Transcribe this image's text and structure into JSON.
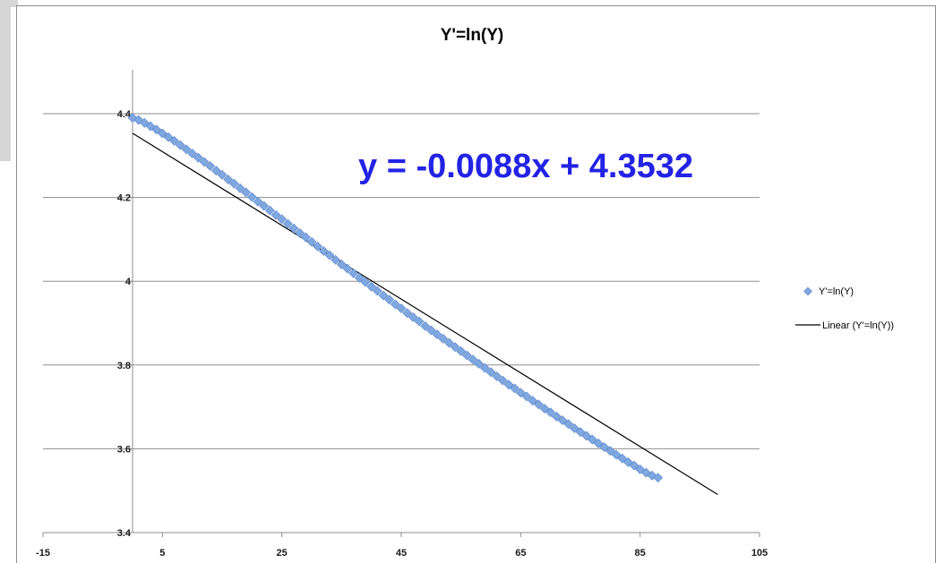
{
  "chart_data": {
    "type": "scatter",
    "title": "Y'=ln(Y)",
    "xlabel": "",
    "ylabel": "",
    "xlim": [
      -15,
      105
    ],
    "ylim": [
      3.4,
      4.4
    ],
    "x_ticks": [
      "-15",
      "5",
      "25",
      "45",
      "65",
      "85",
      "105"
    ],
    "y_ticks": [
      "4.4",
      "4.2",
      "4",
      "3.8",
      "3.6",
      "3.4"
    ],
    "grid": "horizontal",
    "legend_position": "right",
    "equation_label": "y = -0.0088x + 4.3532",
    "series": [
      {
        "name": "Y'=ln(Y)",
        "kind": "scatter",
        "color": "#7fa7e0",
        "marker": "diamond",
        "points": [
          [
            0,
            4.39
          ],
          [
            1,
            4.385
          ],
          [
            2,
            4.378
          ],
          [
            3,
            4.37
          ],
          [
            4,
            4.362
          ],
          [
            5,
            4.353
          ],
          [
            6,
            4.344
          ],
          [
            7,
            4.335
          ],
          [
            8,
            4.325
          ],
          [
            9,
            4.315
          ],
          [
            10,
            4.305
          ],
          [
            11,
            4.295
          ],
          [
            12,
            4.285
          ],
          [
            13,
            4.275
          ],
          [
            14,
            4.264
          ],
          [
            15,
            4.254
          ],
          [
            16,
            4.243
          ],
          [
            17,
            4.233
          ],
          [
            18,
            4.222
          ],
          [
            19,
            4.212
          ],
          [
            20,
            4.201
          ],
          [
            21,
            4.19
          ],
          [
            22,
            4.18
          ],
          [
            23,
            4.169
          ],
          [
            24,
            4.158
          ],
          [
            25,
            4.148
          ],
          [
            26,
            4.137
          ],
          [
            27,
            4.126
          ],
          [
            28,
            4.115
          ],
          [
            29,
            4.105
          ],
          [
            30,
            4.094
          ],
          [
            31,
            4.083
          ],
          [
            32,
            4.072
          ],
          [
            33,
            4.062
          ],
          [
            34,
            4.051
          ],
          [
            35,
            4.04
          ],
          [
            36,
            4.03
          ],
          [
            37,
            4.019
          ],
          [
            38,
            4.008
          ],
          [
            39,
            3.998
          ],
          [
            40,
            3.987
          ],
          [
            41,
            3.977
          ],
          [
            42,
            3.966
          ],
          [
            43,
            3.956
          ],
          [
            44,
            3.945
          ],
          [
            45,
            3.935
          ],
          [
            46,
            3.924
          ],
          [
            47,
            3.914
          ],
          [
            48,
            3.904
          ],
          [
            49,
            3.893
          ],
          [
            50,
            3.883
          ],
          [
            51,
            3.873
          ],
          [
            52,
            3.863
          ],
          [
            53,
            3.853
          ],
          [
            54,
            3.843
          ],
          [
            55,
            3.833
          ],
          [
            56,
            3.823
          ],
          [
            57,
            3.813
          ],
          [
            58,
            3.803
          ],
          [
            59,
            3.793
          ],
          [
            60,
            3.783
          ],
          [
            61,
            3.773
          ],
          [
            62,
            3.763
          ],
          [
            63,
            3.753
          ],
          [
            64,
            3.744
          ],
          [
            65,
            3.734
          ],
          [
            66,
            3.725
          ],
          [
            67,
            3.715
          ],
          [
            68,
            3.706
          ],
          [
            69,
            3.696
          ],
          [
            70,
            3.687
          ],
          [
            71,
            3.677
          ],
          [
            72,
            3.668
          ],
          [
            73,
            3.659
          ],
          [
            74,
            3.649
          ],
          [
            75,
            3.64
          ],
          [
            76,
            3.631
          ],
          [
            77,
            3.622
          ],
          [
            78,
            3.613
          ],
          [
            79,
            3.604
          ],
          [
            80,
            3.595
          ],
          [
            81,
            3.586
          ],
          [
            82,
            3.577
          ],
          [
            83,
            3.568
          ],
          [
            84,
            3.56
          ],
          [
            85,
            3.551
          ],
          [
            86,
            3.543
          ],
          [
            87,
            3.536
          ],
          [
            88,
            3.531
          ]
        ]
      },
      {
        "name": "Linear (Y'=ln(Y))",
        "kind": "trendline",
        "color": "#000000",
        "slope": -0.0088,
        "intercept": 4.3532,
        "x_range": [
          0,
          98
        ]
      }
    ]
  }
}
